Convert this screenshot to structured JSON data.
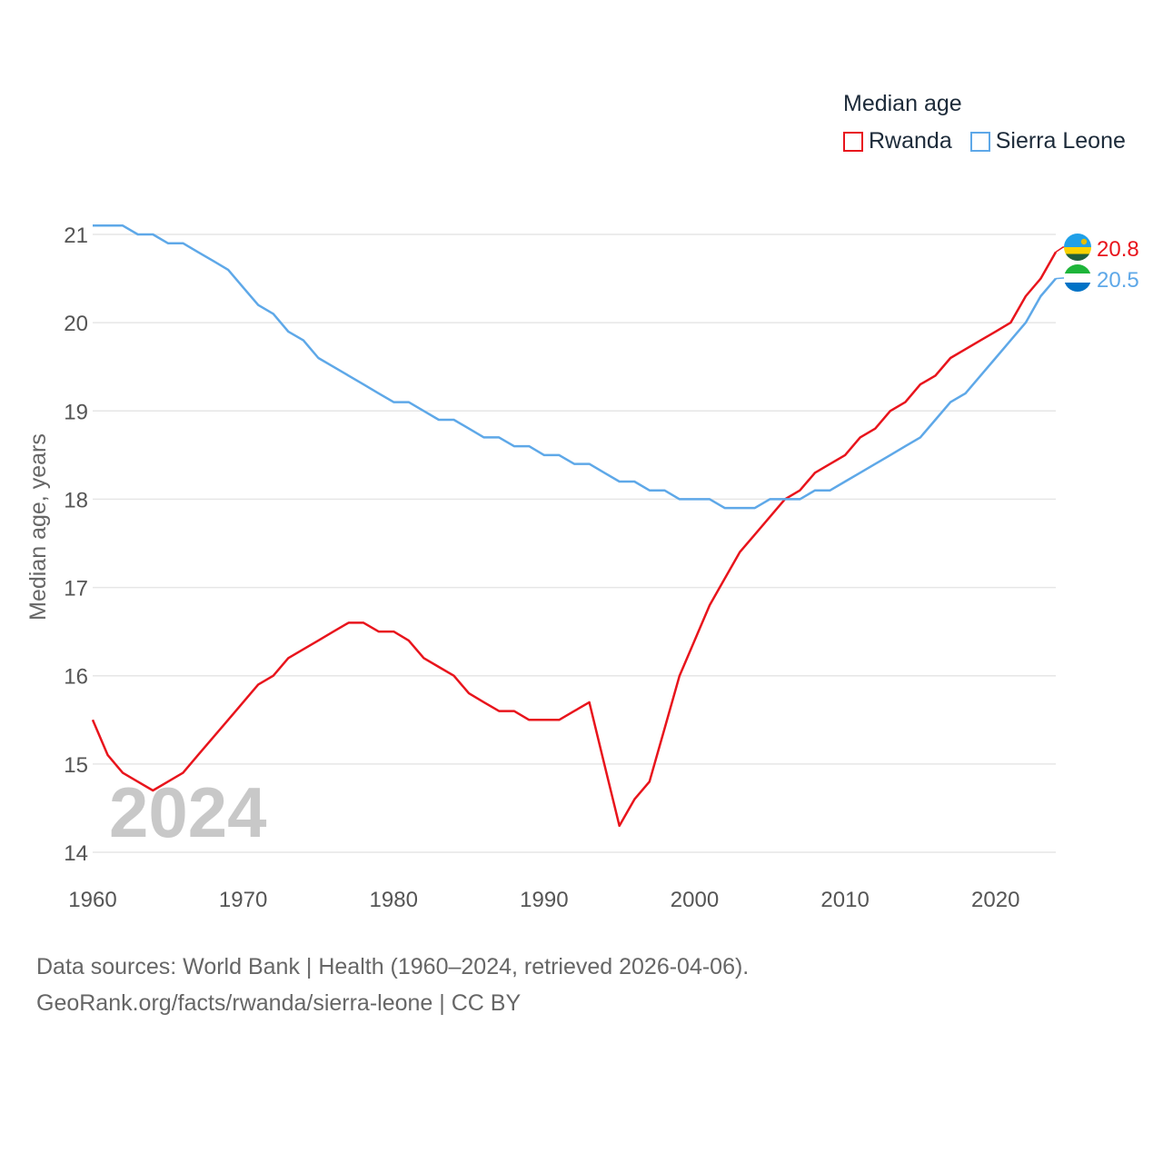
{
  "chart_data": {
    "type": "line",
    "legend_title": "Median age",
    "ylabel": "Median age, years",
    "xlabel": "",
    "year_watermark": "2024",
    "ylim": [
      14,
      21
    ],
    "xlim": [
      1960,
      2024
    ],
    "y_ticks": [
      "14",
      "15",
      "16",
      "17",
      "18",
      "19",
      "20",
      "21"
    ],
    "x_ticks": [
      "1960",
      "1970",
      "1980",
      "1990",
      "2000",
      "2010",
      "2020"
    ],
    "grid": true,
    "legend_position": "top-right",
    "colors": {
      "Rwanda": "#e8141c",
      "Sierra Leone": "#5ea8e8"
    },
    "series": [
      {
        "name": "Rwanda",
        "end_label": "20.8",
        "flag_icon": "rwanda-flag-icon",
        "x": [
          1960,
          1961,
          1962,
          1963,
          1964,
          1965,
          1966,
          1967,
          1968,
          1969,
          1970,
          1971,
          1972,
          1973,
          1974,
          1975,
          1976,
          1977,
          1978,
          1979,
          1980,
          1981,
          1982,
          1983,
          1984,
          1985,
          1986,
          1987,
          1988,
          1989,
          1990,
          1991,
          1992,
          1993,
          1994,
          1995,
          1996,
          1997,
          1998,
          1999,
          2000,
          2001,
          2002,
          2003,
          2004,
          2005,
          2006,
          2007,
          2008,
          2009,
          2010,
          2011,
          2012,
          2013,
          2014,
          2015,
          2016,
          2017,
          2018,
          2019,
          2020,
          2021,
          2022,
          2023,
          2024
        ],
        "values": [
          15.5,
          15.1,
          14.9,
          14.8,
          14.7,
          14.8,
          14.9,
          15.1,
          15.3,
          15.5,
          15.7,
          15.9,
          16.0,
          16.2,
          16.3,
          16.4,
          16.5,
          16.6,
          16.6,
          16.5,
          16.5,
          16.4,
          16.2,
          16.1,
          16.0,
          15.8,
          15.7,
          15.6,
          15.6,
          15.5,
          15.5,
          15.5,
          15.6,
          15.7,
          15.0,
          14.3,
          14.6,
          14.8,
          15.4,
          16.0,
          16.4,
          16.8,
          17.1,
          17.4,
          17.6,
          17.8,
          18.0,
          18.1,
          18.3,
          18.4,
          18.5,
          18.7,
          18.8,
          19.0,
          19.1,
          19.3,
          19.4,
          19.6,
          19.7,
          19.8,
          19.9,
          20.0,
          20.3,
          20.5,
          20.8
        ]
      },
      {
        "name": "Sierra Leone",
        "end_label": "20.5",
        "flag_icon": "sierra-leone-flag-icon",
        "x": [
          1960,
          1961,
          1962,
          1963,
          1964,
          1965,
          1966,
          1967,
          1968,
          1969,
          1970,
          1971,
          1972,
          1973,
          1974,
          1975,
          1976,
          1977,
          1978,
          1979,
          1980,
          1981,
          1982,
          1983,
          1984,
          1985,
          1986,
          1987,
          1988,
          1989,
          1990,
          1991,
          1992,
          1993,
          1994,
          1995,
          1996,
          1997,
          1998,
          1999,
          2000,
          2001,
          2002,
          2003,
          2004,
          2005,
          2006,
          2007,
          2008,
          2009,
          2010,
          2011,
          2012,
          2013,
          2014,
          2015,
          2016,
          2017,
          2018,
          2019,
          2020,
          2021,
          2022,
          2023,
          2024
        ],
        "values": [
          21.1,
          21.1,
          21.1,
          21.0,
          21.0,
          20.9,
          20.9,
          20.8,
          20.7,
          20.6,
          20.4,
          20.2,
          20.1,
          19.9,
          19.8,
          19.6,
          19.5,
          19.4,
          19.3,
          19.2,
          19.1,
          19.1,
          19.0,
          18.9,
          18.9,
          18.8,
          18.7,
          18.7,
          18.6,
          18.6,
          18.5,
          18.5,
          18.4,
          18.4,
          18.3,
          18.2,
          18.2,
          18.1,
          18.1,
          18.0,
          18.0,
          18.0,
          17.9,
          17.9,
          17.9,
          18.0,
          18.0,
          18.0,
          18.1,
          18.1,
          18.2,
          18.3,
          18.4,
          18.5,
          18.6,
          18.7,
          18.9,
          19.1,
          19.2,
          19.4,
          19.6,
          19.8,
          20.0,
          20.3,
          20.5
        ]
      }
    ]
  },
  "footer": {
    "line1": "Data sources: World Bank | Health (1960–2024, retrieved 2026-04-06).",
    "line2": "GeoRank.org/facts/rwanda/sierra-leone | CC BY"
  }
}
